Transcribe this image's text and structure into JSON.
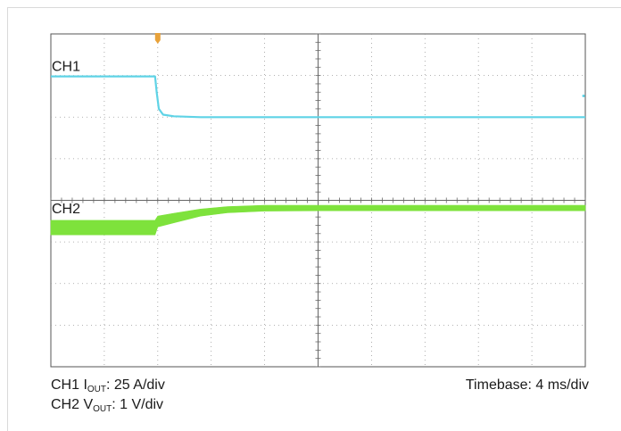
{
  "chart_data": {
    "type": "line",
    "title": "",
    "grid": true,
    "divisions": {
      "x": 10,
      "y": 8
    },
    "x": {
      "unit": "div",
      "range": [
        0,
        10
      ]
    },
    "y": {
      "unit": "div",
      "range": [
        0,
        8
      ]
    },
    "trigger_marker": {
      "x": 2,
      "color": "#e8a23a"
    },
    "series": [
      {
        "name": "CH1",
        "color": "#5fd3e6",
        "style": "thin",
        "points": [
          [
            0,
            6.98
          ],
          [
            1.95,
            6.98
          ],
          [
            1.98,
            6.6
          ],
          [
            2.02,
            6.2
          ],
          [
            2.1,
            6.06
          ],
          [
            2.3,
            6.02
          ],
          [
            2.8,
            6.0
          ],
          [
            10,
            6.0
          ]
        ]
      },
      {
        "name": "CH2",
        "color": "#7ee23c",
        "style": "thick",
        "lower": [
          [
            0,
            3.17
          ],
          [
            1.95,
            3.17
          ],
          [
            2.0,
            3.36
          ],
          [
            2.3,
            3.46
          ],
          [
            2.8,
            3.62
          ],
          [
            3.3,
            3.7
          ],
          [
            4.0,
            3.74
          ],
          [
            5.0,
            3.75
          ],
          [
            10,
            3.75
          ]
        ],
        "upper": [
          [
            0,
            3.52
          ],
          [
            1.95,
            3.52
          ],
          [
            2.0,
            3.62
          ],
          [
            2.3,
            3.69
          ],
          [
            2.8,
            3.79
          ],
          [
            3.3,
            3.85
          ],
          [
            4.0,
            3.88
          ],
          [
            5.0,
            3.88
          ],
          [
            10,
            3.88
          ]
        ]
      }
    ]
  },
  "labels": {
    "ch1": "CH1",
    "ch2": "CH2",
    "ch1_prefix": "CH1 I",
    "ch1_sub": "OUT",
    "ch1_scale": ": 25 A/div",
    "ch2_prefix": "CH2 V",
    "ch2_sub": "OUT",
    "ch2_scale": ": 1 V/div",
    "timebase": "Timebase: 4 ms/div"
  }
}
